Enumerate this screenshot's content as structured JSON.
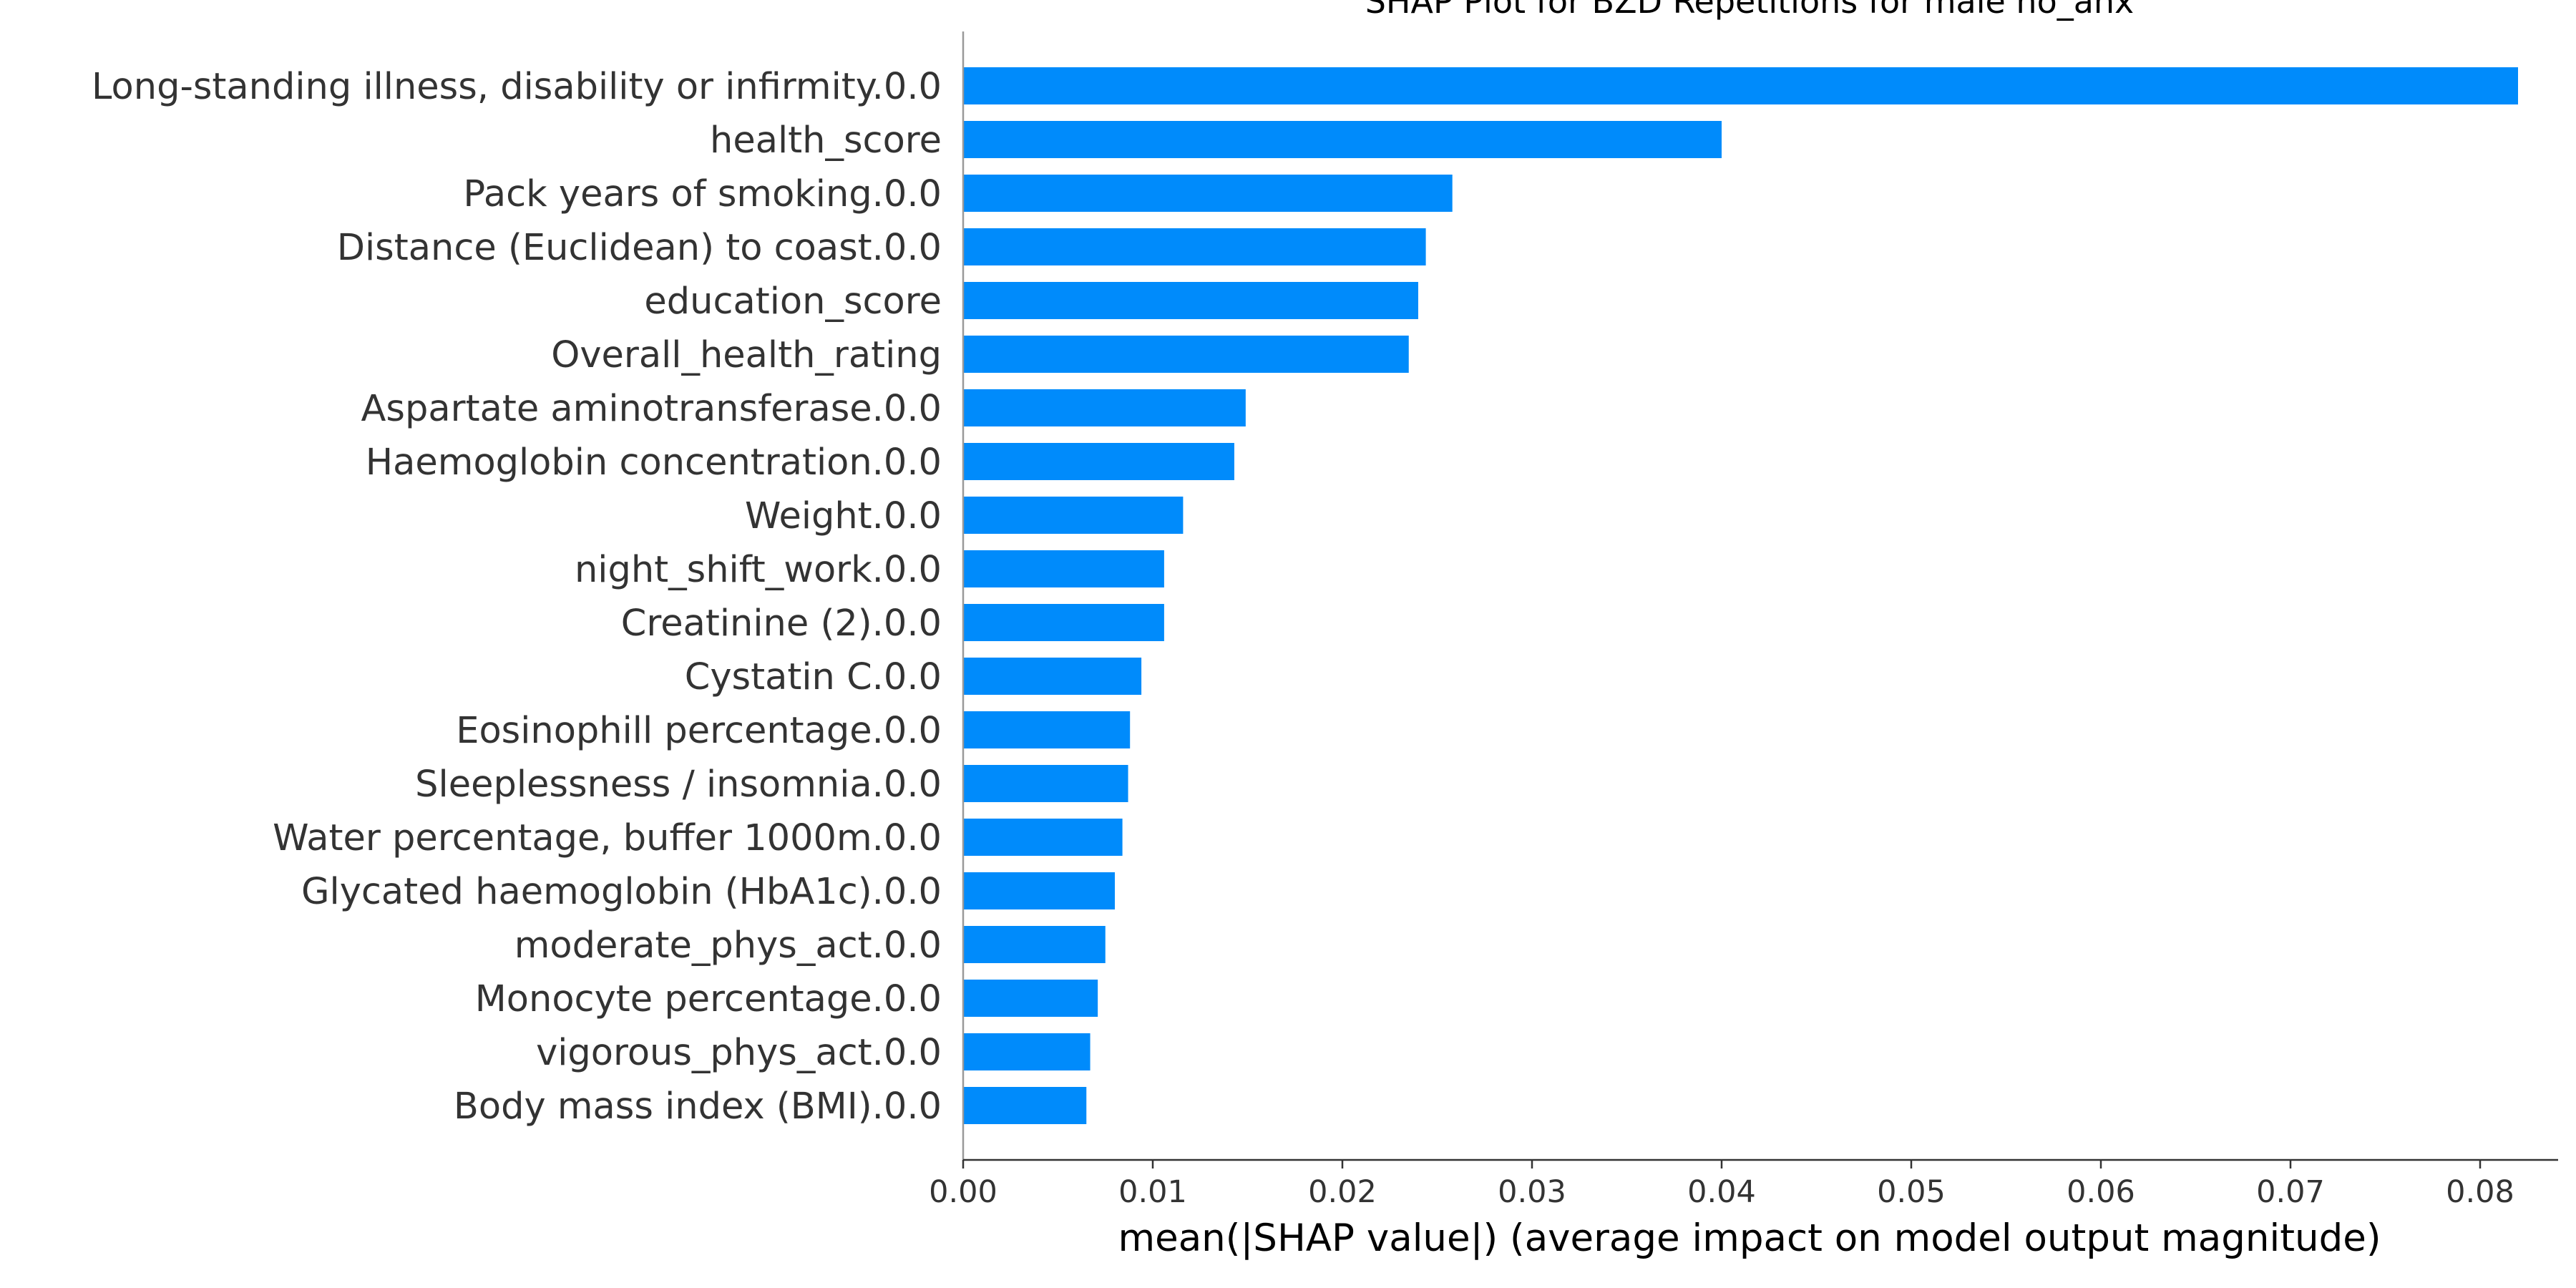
{
  "chart_data": {
    "type": "bar",
    "orientation": "horizontal",
    "title": "SHAP Plot for BZD Repetitions for male no_anx",
    "xlabel": "mean(|SHAP value|) (average impact on model output magnitude)",
    "ylabel": "",
    "xlim": [
      0,
      0.086
    ],
    "x_ticks": [
      0.0,
      0.01,
      0.02,
      0.03,
      0.04,
      0.05,
      0.06,
      0.07,
      0.08
    ],
    "x_tick_labels": [
      "0.00",
      "0.01",
      "0.02",
      "0.03",
      "0.04",
      "0.05",
      "0.06",
      "0.07",
      "0.08"
    ],
    "grid": false,
    "bar_color": "#008bfb",
    "categories": [
      "Long-standing illness, disability or infirmity.0.0",
      "health_score",
      "Pack years of smoking.0.0",
      "Distance (Euclidean) to coast.0.0",
      "education_score",
      "Overall_health_rating",
      "Aspartate aminotransferase.0.0",
      "Haemoglobin concentration.0.0",
      "Weight.0.0",
      "night_shift_work.0.0",
      "Creatinine (2).0.0",
      "Cystatin C.0.0",
      "Eosinophill percentage.0.0",
      "Sleeplessness / insomnia.0.0",
      "Water percentage, buffer 1000m.0.0",
      "Glycated haemoglobin (HbA1c).0.0",
      "moderate_phys_act.0.0",
      "Monocyte percentage.0.0",
      "vigorous_phys_act.0.0",
      "Body mass index (BMI).0.0"
    ],
    "values": [
      0.082,
      0.04,
      0.0258,
      0.0244,
      0.024,
      0.0235,
      0.0149,
      0.0143,
      0.0116,
      0.0106,
      0.0106,
      0.0094,
      0.0088,
      0.0087,
      0.0084,
      0.008,
      0.0075,
      0.0071,
      0.0067,
      0.0065
    ]
  }
}
